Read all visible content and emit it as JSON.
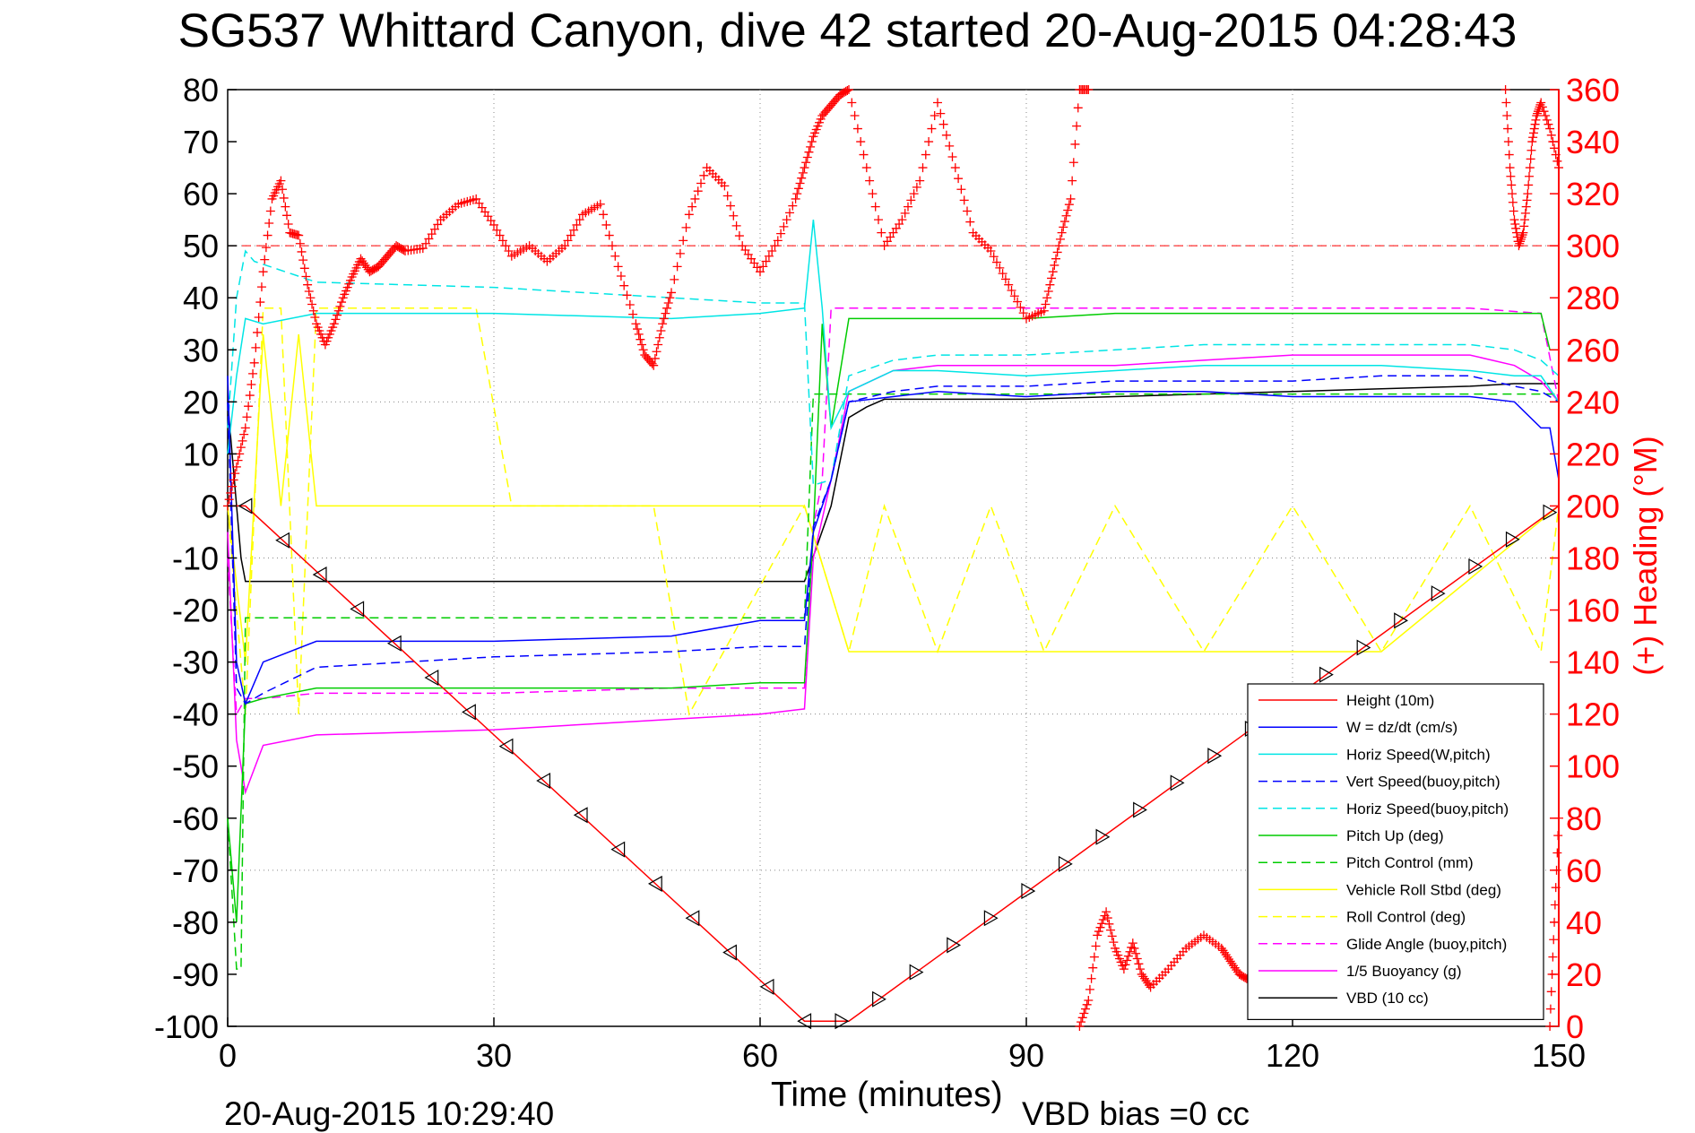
{
  "chart_data": {
    "type": "line",
    "title": "SG537 Whittard Canyon, dive 42 started 20-Aug-2015 04:28:43",
    "xlabel": "Time (minutes)",
    "ylabel": "",
    "y2label": "(+) Heading (°M)",
    "xlim": [
      0,
      150
    ],
    "ylim": [
      -100,
      80
    ],
    "y2lim": [
      0,
      360
    ],
    "x_ticks": [
      "0",
      "30",
      "60",
      "90",
      "120",
      "150"
    ],
    "y_ticks": [
      "80",
      "70",
      "60",
      "50",
      "40",
      "30",
      "20",
      "10",
      "0",
      "-10",
      "-20",
      "-30",
      "-40",
      "-50",
      "-60",
      "-70",
      "-80",
      "-90",
      "-100"
    ],
    "y2_ticks": [
      "360",
      "340",
      "320",
      "300",
      "280",
      "260",
      "240",
      "220",
      "200",
      "180",
      "160",
      "140",
      "120",
      "100",
      "80",
      "60",
      "40",
      "20",
      "0"
    ],
    "grid": true,
    "legend_position": "bottom-right",
    "footer_left": "20-Aug-2015 10:29:40",
    "footer_right": "VBD bias =0 cc",
    "heading_reference": 300,
    "series": [
      {
        "name": "Height (10m)",
        "color": "#ff0000",
        "style": "solid",
        "x": [
          0,
          2,
          65,
          70,
          150
        ],
        "y": [
          0,
          0,
          -99,
          -99,
          0
        ]
      },
      {
        "name": "W = dz/dt (cm/s)",
        "color": "#0000ff",
        "style": "solid",
        "x": [
          0,
          1,
          2,
          4,
          10,
          30,
          50,
          60,
          65,
          66,
          68,
          70,
          75,
          80,
          90,
          100,
          110,
          120,
          130,
          140,
          145,
          148,
          149,
          150
        ],
        "y": [
          25,
          -30,
          -38,
          -30,
          -26,
          -26,
          -25,
          -22,
          -22,
          -5,
          5,
          20,
          21,
          22,
          21,
          22,
          22,
          21,
          21,
          21,
          20,
          15,
          15,
          5
        ]
      },
      {
        "name": "Horiz Speed(W,pitch)",
        "color": "#00e5e5",
        "style": "solid",
        "x": [
          0,
          1,
          2,
          4,
          10,
          30,
          50,
          60,
          65,
          66,
          67,
          68,
          70,
          75,
          80,
          90,
          100,
          110,
          120,
          130,
          140,
          145,
          148,
          150
        ],
        "y": [
          10,
          25,
          36,
          35,
          37,
          37,
          36,
          37,
          38,
          55,
          38,
          15,
          22,
          26,
          26,
          25,
          26,
          27,
          27,
          27,
          26,
          25,
          25,
          20
        ]
      },
      {
        "name": "Vert Speed(buoy,pitch)",
        "color": "#0000ff",
        "style": "dashed",
        "x": [
          0,
          1,
          2,
          4,
          10,
          30,
          50,
          60,
          65,
          66,
          68,
          70,
          75,
          80,
          90,
          100,
          110,
          120,
          130,
          140,
          145,
          148,
          150
        ],
        "y": [
          20,
          -35,
          -38,
          -36,
          -31,
          -29,
          -28,
          -27,
          -27,
          -4,
          5,
          20,
          22,
          23,
          23,
          24,
          24,
          24,
          25,
          25,
          23,
          22,
          20
        ]
      },
      {
        "name": "Horiz Speed(buoy,pitch)",
        "color": "#00e5e5",
        "style": "dashed",
        "x": [
          0,
          1,
          2,
          3,
          10,
          30,
          50,
          60,
          65,
          66,
          68,
          70,
          75,
          80,
          90,
          100,
          110,
          120,
          130,
          140,
          145,
          148,
          150
        ],
        "y": [
          15,
          40,
          49,
          47,
          43,
          42,
          40,
          39,
          39,
          4,
          5,
          25,
          28,
          29,
          29,
          30,
          31,
          31,
          31,
          31,
          30,
          28,
          25
        ]
      },
      {
        "name": "Pitch Up (deg)",
        "color": "#00cc00",
        "style": "solid",
        "x": [
          0,
          1,
          2,
          4,
          10,
          30,
          50,
          60,
          65,
          66,
          67,
          68,
          70,
          80,
          90,
          100,
          110,
          120,
          130,
          140,
          148,
          149,
          150
        ],
        "y": [
          -60,
          -80,
          -38,
          -37,
          -35,
          -35,
          -35,
          -34,
          -34,
          -5,
          35,
          15,
          36,
          36,
          36,
          37,
          37,
          37,
          37,
          37,
          37,
          30,
          30
        ]
      },
      {
        "name": "Pitch Control (mm)",
        "color": "#00cc00",
        "style": "dashed",
        "x": [
          0,
          1,
          1.5,
          2,
          65,
          65.5,
          66,
          150
        ],
        "y": [
          -60,
          -89,
          -89,
          -21.5,
          -21.5,
          0,
          21.5,
          21.5
        ]
      },
      {
        "name": "Vehicle Roll Stbd (deg)",
        "color": "#ffff00",
        "style": "solid",
        "x": [
          0,
          2,
          4,
          6,
          8,
          10,
          30,
          50,
          65,
          70,
          90,
          110,
          130,
          150
        ],
        "y": [
          0,
          -30,
          33,
          0,
          33,
          0,
          0,
          0,
          0,
          -28,
          -28,
          -28,
          -28,
          0
        ]
      },
      {
        "name": "Roll Control (deg)",
        "color": "#ffff00",
        "style": "dashed",
        "x": [
          0,
          2,
          4,
          6,
          8,
          10,
          28,
          32,
          48,
          52,
          65,
          70,
          74,
          80,
          86,
          92,
          100,
          110,
          120,
          130,
          140,
          148,
          150
        ],
        "y": [
          0,
          -40,
          38,
          38,
          -40,
          38,
          38,
          0,
          0,
          -40,
          0,
          -28,
          0,
          -28,
          0,
          -28,
          0,
          -28,
          0,
          -28,
          0,
          -28,
          0
        ]
      },
      {
        "name": "Glide Angle (buoy,pitch)",
        "color": "#ff00ff",
        "style": "dashed",
        "x": [
          0,
          1,
          2,
          4,
          10,
          30,
          50,
          60,
          65,
          66,
          67,
          68,
          70,
          80,
          90,
          100,
          110,
          120,
          130,
          140,
          148,
          150
        ],
        "y": [
          -10,
          -40,
          -37,
          -37,
          -36,
          -36,
          -35,
          -35,
          -35,
          -4,
          5,
          38,
          38,
          38,
          38,
          38,
          38,
          38,
          38,
          38,
          37,
          20
        ]
      },
      {
        "name": "1/5 Buoyancy (g)",
        "color": "#ff00ff",
        "style": "solid",
        "x": [
          0,
          1,
          2,
          4,
          10,
          30,
          50,
          60,
          65,
          66,
          68,
          70,
          75,
          80,
          90,
          100,
          110,
          120,
          130,
          140,
          145,
          148,
          150
        ],
        "y": [
          -5,
          -45,
          -55,
          -46,
          -44,
          -43,
          -41,
          -40,
          -39,
          -10,
          5,
          22,
          26,
          27,
          27,
          27,
          28,
          29,
          29,
          29,
          27,
          24,
          20
        ]
      },
      {
        "name": "VBD (10 cc)",
        "color": "#000000",
        "style": "solid",
        "x": [
          0,
          1.5,
          2,
          65,
          68,
          70,
          72,
          74,
          90,
          100,
          110,
          120,
          130,
          140,
          145,
          150
        ],
        "y": [
          20,
          -10,
          -14.5,
          -14.5,
          0,
          17,
          19,
          20.5,
          20.5,
          21,
          21.5,
          22,
          22.5,
          23,
          23.5,
          23.5
        ]
      }
    ],
    "heading_segments": [
      {
        "x": [
          0,
          1,
          2,
          3,
          4,
          5,
          6,
          7,
          8,
          9,
          10,
          11,
          12,
          13,
          14,
          15,
          16,
          17,
          18,
          19,
          20,
          22,
          24,
          26,
          28,
          30,
          32,
          34,
          36,
          38,
          40,
          42,
          44,
          46,
          47,
          48,
          49,
          50,
          52,
          54,
          56,
          58,
          60,
          62,
          64,
          65,
          66,
          67,
          68,
          69,
          70,
          72,
          74,
          76,
          78,
          80,
          82,
          84,
          86,
          88,
          90,
          92,
          93,
          94,
          95,
          96,
          97
        ],
        "y": [
          200,
          215,
          230,
          255,
          290,
          318,
          325,
          305,
          304,
          285,
          270,
          262,
          270,
          280,
          288,
          295,
          290,
          292,
          296,
          300,
          298,
          299,
          310,
          316,
          318,
          308,
          296,
          300,
          294,
          300,
          312,
          316,
          292,
          270,
          258,
          254,
          270,
          282,
          312,
          330,
          323,
          300,
          290,
          302,
          318,
          330,
          342,
          350,
          354,
          358,
          360,
          330,
          300,
          310,
          325,
          355,
          330,
          305,
          298,
          285,
          272,
          275,
          290,
          305,
          318,
          360,
          360
        ]
      },
      {
        "x": [
          96,
          97,
          98,
          99,
          100,
          101,
          102,
          103,
          104,
          106,
          108,
          110,
          112,
          113,
          114,
          115
        ],
        "y": [
          0,
          10,
          35,
          44,
          30,
          22,
          32,
          20,
          15,
          22,
          30,
          35,
          30,
          25,
          20,
          18
        ]
      },
      {
        "x": [
          144,
          144.5,
          145,
          145.5,
          146,
          146.5,
          147,
          147.5,
          148,
          149,
          150
        ],
        "y": [
          360,
          330,
          310,
          300,
          305,
          320,
          340,
          350,
          355,
          345,
          330
        ]
      },
      {
        "x": [
          149,
          149.5,
          150
        ],
        "y": [
          0,
          40,
          80
        ]
      }
    ],
    "heading_markers_y": [
      [
        82,
        300
      ],
      [
        20,
        296
      ],
      [
        56,
        305
      ]
    ]
  }
}
